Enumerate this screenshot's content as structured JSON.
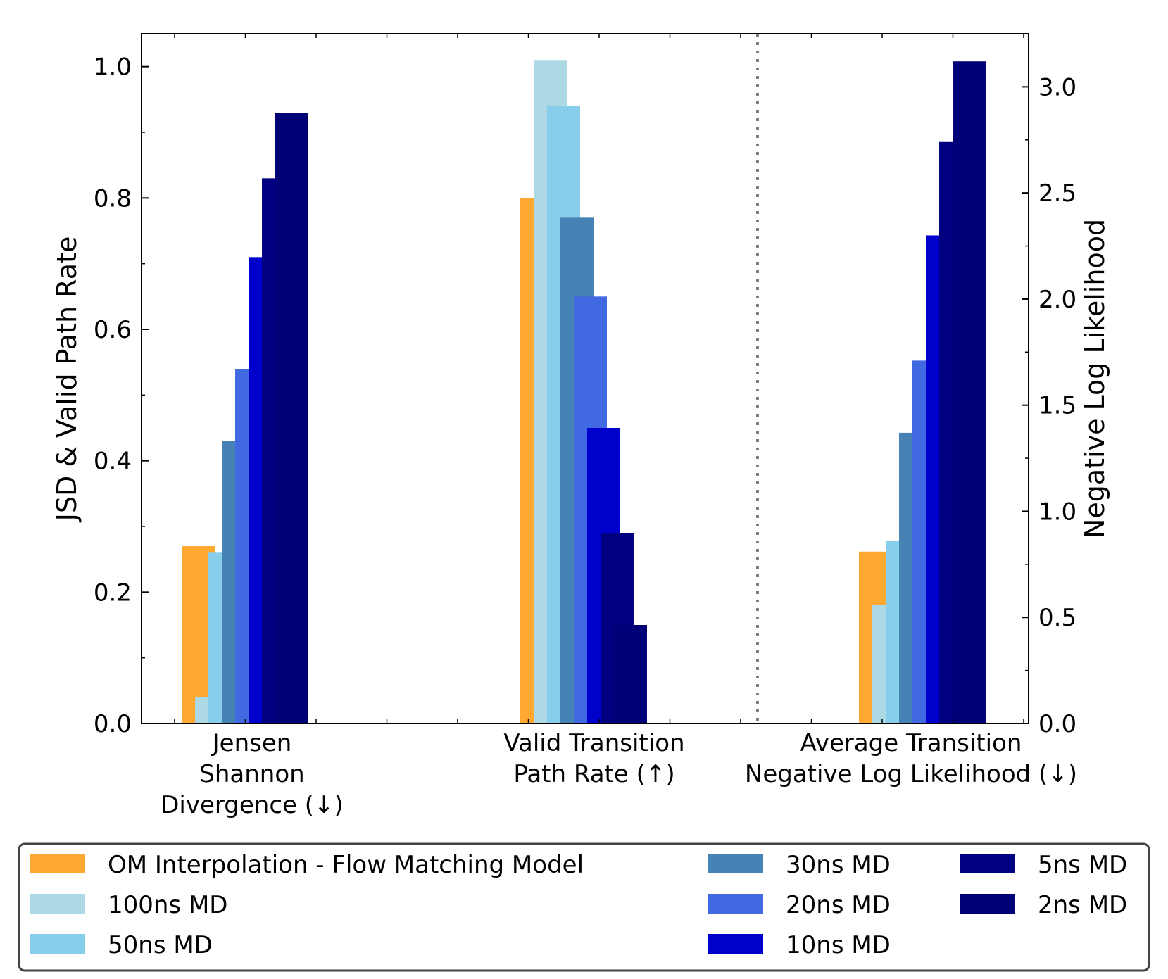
{
  "chart_data": {
    "type": "bar",
    "categories": [
      [
        "Jensen",
        "Shannon",
        "Divergence (↓)"
      ],
      [
        "Valid Transition",
        "Path Rate (↑)"
      ],
      [
        "Average Transition",
        "Negative Log Likelihood (↓)"
      ]
    ],
    "ylabel": "JSD & Valid Path Rate",
    "y2label": "Negative Log Likelihood",
    "ylim": [
      0,
      1.05
    ],
    "y2lim": [
      0,
      3.25
    ],
    "yticks": [
      "0.0",
      "0.2",
      "0.4",
      "0.6",
      "0.8",
      "1.0"
    ],
    "y2ticks": [
      "0.0",
      "0.5",
      "1.0",
      "1.5",
      "2.0",
      "2.5",
      "3.0"
    ],
    "separator": "dotted line between second and third groups",
    "series": [
      {
        "name": "OM Interpolation - Flow Matching Model",
        "color": "#ffa832",
        "values": [
          0.27,
          0.8,
          0.81
        ]
      },
      {
        "name": "100ns MD",
        "color": "#add8e6",
        "values": [
          0.04,
          1.01,
          0.56
        ]
      },
      {
        "name": "50ns MD",
        "color": "#87ceeb",
        "values": [
          0.26,
          0.94,
          0.86
        ]
      },
      {
        "name": "30ns MD",
        "color": "#4682b4",
        "values": [
          0.43,
          0.77,
          1.37
        ]
      },
      {
        "name": "20ns MD",
        "color": "#4169e1",
        "values": [
          0.54,
          0.65,
          1.71
        ]
      },
      {
        "name": "10ns MD",
        "color": "#0000cd",
        "values": [
          0.71,
          0.45,
          2.3
        ]
      },
      {
        "name": "5ns MD",
        "color": "#000080",
        "values": [
          0.83,
          0.29,
          2.74
        ]
      },
      {
        "name": "2ns MD",
        "color": "#000077",
        "values": [
          0.93,
          0.15,
          3.12
        ]
      }
    ],
    "axes_for_groups": [
      "left",
      "left",
      "right"
    ],
    "legend": "bottom, outside plot, 3 columns"
  }
}
